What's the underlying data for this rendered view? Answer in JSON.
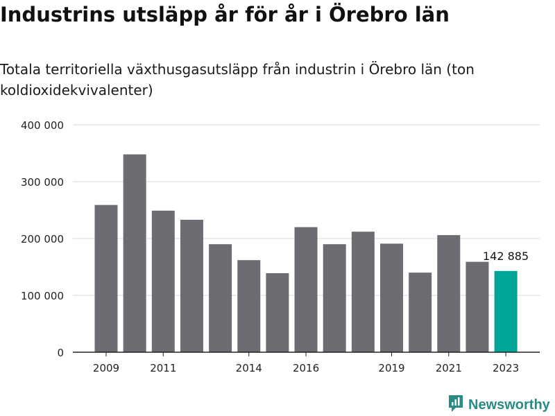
{
  "header": {
    "title": "Industrins utsläpp år för år i Örebro län",
    "subtitle": "Totala territoriella växthusgasutsläpp från industrin i Örebro län (ton koldioxidekvivalenter)"
  },
  "chart_data": {
    "type": "bar",
    "categories": [
      "2009",
      "2010",
      "2011",
      "2012",
      "2013",
      "2014",
      "2015",
      "2016",
      "2017",
      "2018",
      "2019",
      "2020",
      "2021",
      "2022",
      "2023"
    ],
    "x_tick_labels": [
      "2009",
      "2011",
      "2014",
      "2016",
      "2019",
      "2021",
      "2023"
    ],
    "values": [
      259000,
      348000,
      249000,
      233000,
      190000,
      162000,
      139000,
      220000,
      190000,
      212000,
      191000,
      140000,
      206000,
      159000,
      142885
    ],
    "ylim": [
      0,
      400000
    ],
    "y_ticks": [
      {
        "value": 0,
        "label": "0"
      },
      {
        "value": 100000,
        "label": "100 000"
      },
      {
        "value": 200000,
        "label": "200 000"
      },
      {
        "value": 300000,
        "label": "300 000"
      },
      {
        "value": 400000,
        "label": "400 000"
      }
    ],
    "highlight": {
      "category": "2023",
      "label": "142 885"
    },
    "grid": true,
    "colors": {
      "bar": "#6d6c73",
      "highlight": "#00a59a",
      "grid": "#d9d9d9",
      "axis": "#222222"
    }
  },
  "footer": {
    "brand": "Newsworthy",
    "brand_color": "#2a8a84",
    "icon": "newsworthy-logo-icon"
  }
}
